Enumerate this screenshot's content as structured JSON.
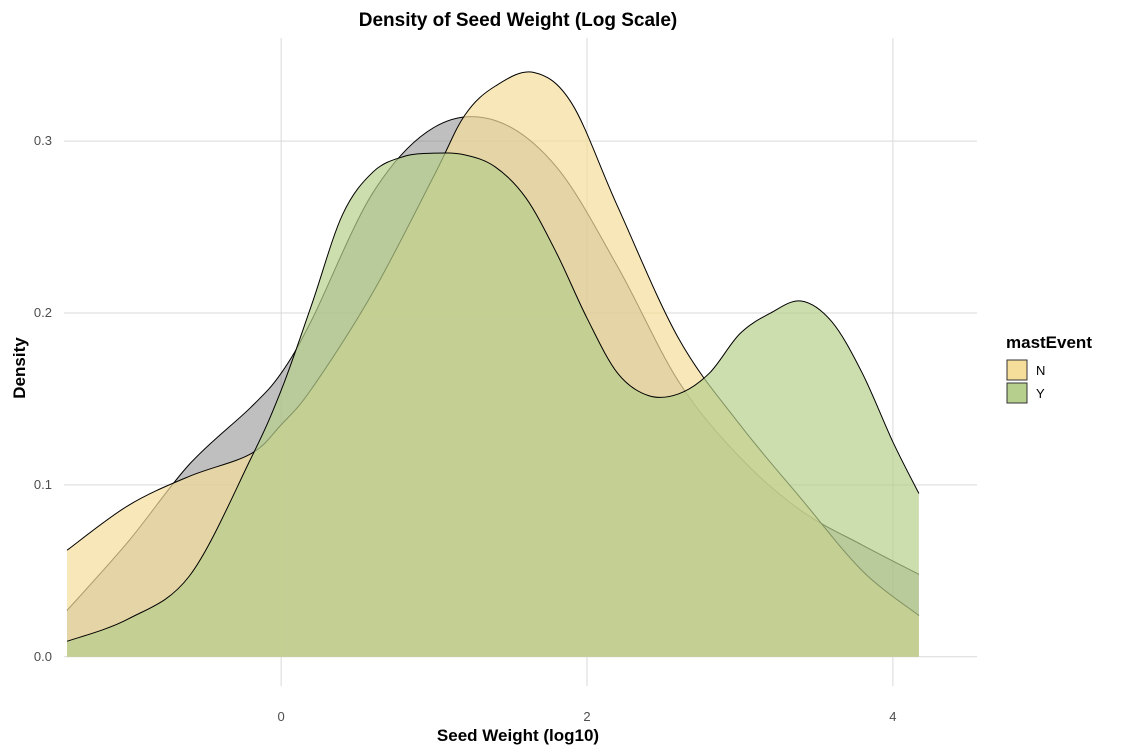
{
  "chart_data": {
    "type": "area",
    "title": "Density of Seed Weight (Log Scale)",
    "xlabel": "Seed Weight (log10)",
    "ylabel": "Density",
    "xlim": [
      -1.42,
      4.55
    ],
    "ylim": [
      -0.017,
      0.36
    ],
    "x_ticks": [
      0,
      2,
      4
    ],
    "y_ticks": [
      0.0,
      0.1,
      0.2,
      0.3
    ],
    "x_tick_labels": [
      "0",
      "2",
      "4"
    ],
    "y_tick_labels": [
      "0.0",
      "0.1",
      "0.2",
      "0.3"
    ],
    "grid": true,
    "legend": {
      "title": "mastEvent",
      "position": "right",
      "entries": [
        {
          "label": "N",
          "color": "#f5dd9a"
        },
        {
          "label": "Y",
          "color": "#b6cf8c"
        }
      ]
    },
    "series": [
      {
        "color": "#7f7f7f",
        "opacity": 0.5,
        "x": [
          -1.4,
          -1.0,
          -0.6,
          -0.2,
          0.0,
          0.2,
          0.6,
          1.0,
          1.4,
          1.8,
          2.2,
          2.6,
          3.0,
          3.4,
          3.8,
          4.17
        ],
        "y": [
          0.027,
          0.067,
          0.112,
          0.145,
          0.165,
          0.196,
          0.27,
          0.308,
          0.312,
          0.285,
          0.227,
          0.16,
          0.116,
          0.085,
          0.065,
          0.048
        ]
      },
      {
        "name": "N",
        "color": "#f5dd9a",
        "opacity": 0.7,
        "x": [
          -1.4,
          -1.0,
          -0.6,
          -0.2,
          0.0,
          0.2,
          0.6,
          1.0,
          1.2,
          1.4,
          1.65,
          1.9,
          2.2,
          2.6,
          3.0,
          3.4,
          3.8,
          4.17
        ],
        "y": [
          0.062,
          0.088,
          0.105,
          0.118,
          0.135,
          0.156,
          0.212,
          0.28,
          0.315,
          0.332,
          0.34,
          0.322,
          0.262,
          0.185,
          0.135,
          0.092,
          0.05,
          0.024
        ]
      },
      {
        "name": "Y",
        "color": "#b6cf8c",
        "opacity": 0.7,
        "x": [
          -1.4,
          -1.0,
          -0.6,
          -0.2,
          0.0,
          0.2,
          0.4,
          0.6,
          0.8,
          1.0,
          1.2,
          1.4,
          1.6,
          1.8,
          2.0,
          2.2,
          2.4,
          2.6,
          2.8,
          3.0,
          3.2,
          3.4,
          3.6,
          3.8,
          4.0,
          4.17
        ],
        "y": [
          0.009,
          0.022,
          0.047,
          0.115,
          0.155,
          0.205,
          0.257,
          0.282,
          0.291,
          0.293,
          0.292,
          0.285,
          0.267,
          0.235,
          0.197,
          0.165,
          0.152,
          0.153,
          0.165,
          0.188,
          0.2,
          0.207,
          0.195,
          0.165,
          0.125,
          0.095
        ]
      }
    ]
  }
}
